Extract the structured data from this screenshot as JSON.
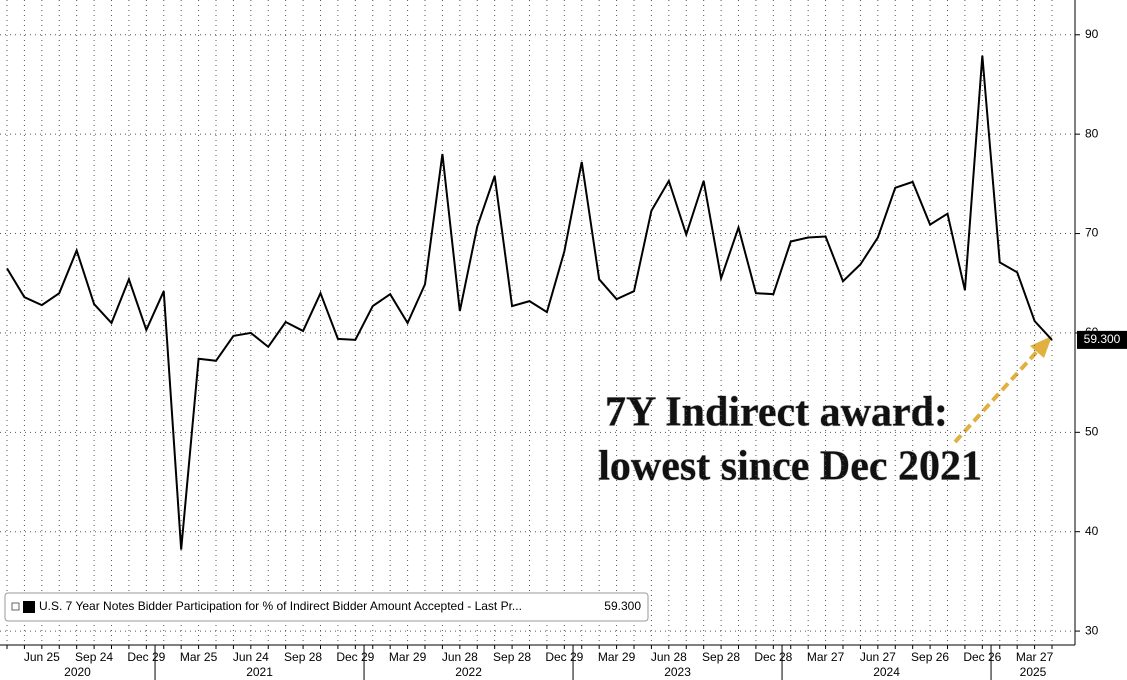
{
  "chart_data": {
    "type": "line",
    "categories": [
      null,
      null,
      "Jun 25",
      null,
      null,
      "Sep 24",
      null,
      null,
      "Dec 29",
      null,
      null,
      "Mar 25",
      null,
      null,
      "Jun 24",
      null,
      null,
      "Sep 28",
      null,
      null,
      "Dec 29",
      null,
      null,
      "Mar 29",
      null,
      null,
      "Jun 28",
      null,
      null,
      "Sep 28",
      null,
      null,
      "Dec 29",
      null,
      null,
      "Mar 29",
      null,
      null,
      "Jun 28",
      null,
      null,
      "Sep 28",
      null,
      null,
      "Dec 28",
      null,
      null,
      "Mar 27",
      null,
      null,
      "Jun 27",
      null,
      null,
      "Sep 26",
      null,
      null,
      "Dec 26",
      null,
      null,
      "Mar 27",
      null
    ],
    "years": [
      "2020",
      "2021",
      "2022",
      "2023",
      "2024",
      "2025"
    ],
    "series": [
      {
        "name": "U.S. 7 Year Notes Bidder Participation for % of Indirect Bidder Amount Accepted - Last Pr...",
        "color": "#000000",
        "values": [
          66.5,
          63.6,
          62.8,
          64.0,
          68.3,
          62.9,
          61.0,
          65.4,
          60.3,
          64.2,
          38.2,
          57.4,
          57.2,
          59.7,
          60.0,
          58.6,
          61.1,
          60.2,
          64.0,
          59.4,
          59.3,
          62.7,
          63.9,
          61.0,
          64.9,
          78.0,
          62.2,
          70.7,
          75.8,
          62.7,
          63.2,
          62.1,
          68.2,
          77.2,
          65.4,
          63.4,
          64.2,
          72.3,
          75.3,
          69.9,
          75.3,
          65.5,
          70.6,
          64.0,
          63.9,
          69.2,
          69.6,
          69.7,
          65.2,
          66.9,
          69.6,
          74.6,
          75.2,
          70.9,
          72.0,
          64.3,
          87.9,
          67.1,
          66.1,
          61.2,
          59.3
        ],
        "last_label": "59.300"
      }
    ],
    "ylim": [
      28.6,
      93.5
    ],
    "yticks": [
      30,
      40,
      50,
      60,
      70,
      80,
      90
    ],
    "grid": true,
    "annotation": [
      "7Y Indirect award:",
      "lowest since Dec 2021"
    ]
  }
}
